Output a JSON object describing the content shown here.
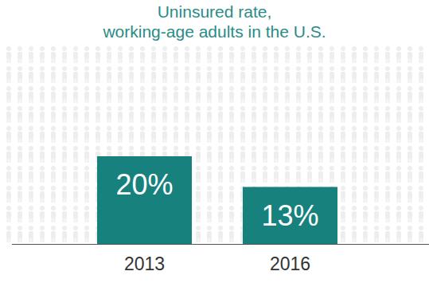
{
  "chart_data": {
    "type": "bar",
    "title": "Uninsured rate, working-age adults in the U.S.",
    "categories": [
      "2013",
      "2016"
    ],
    "values": [
      20,
      13
    ],
    "value_labels": [
      "20%",
      "13%"
    ],
    "color": "#17827d",
    "ylim": [
      0,
      40
    ],
    "data_labels": true,
    "tick_labels": "x",
    "grid": false
  }
}
